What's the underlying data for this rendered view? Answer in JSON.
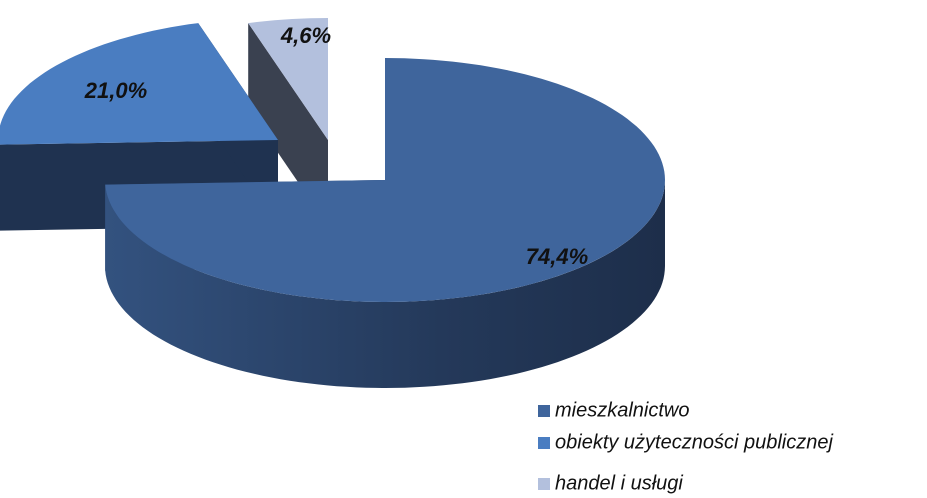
{
  "chart_data": {
    "type": "pie",
    "categories": [
      "mieszkalnictwo",
      "obiekty użyteczności publicznej",
      "handel i usługi"
    ],
    "values": [
      74.4,
      21.0,
      4.6
    ],
    "value_labels": [
      "74,4%",
      "21,0%",
      "4,6%"
    ],
    "colors": [
      "#3f659c",
      "#4a7dc1",
      "#b3c0dd"
    ],
    "legend": "bottom-right"
  }
}
